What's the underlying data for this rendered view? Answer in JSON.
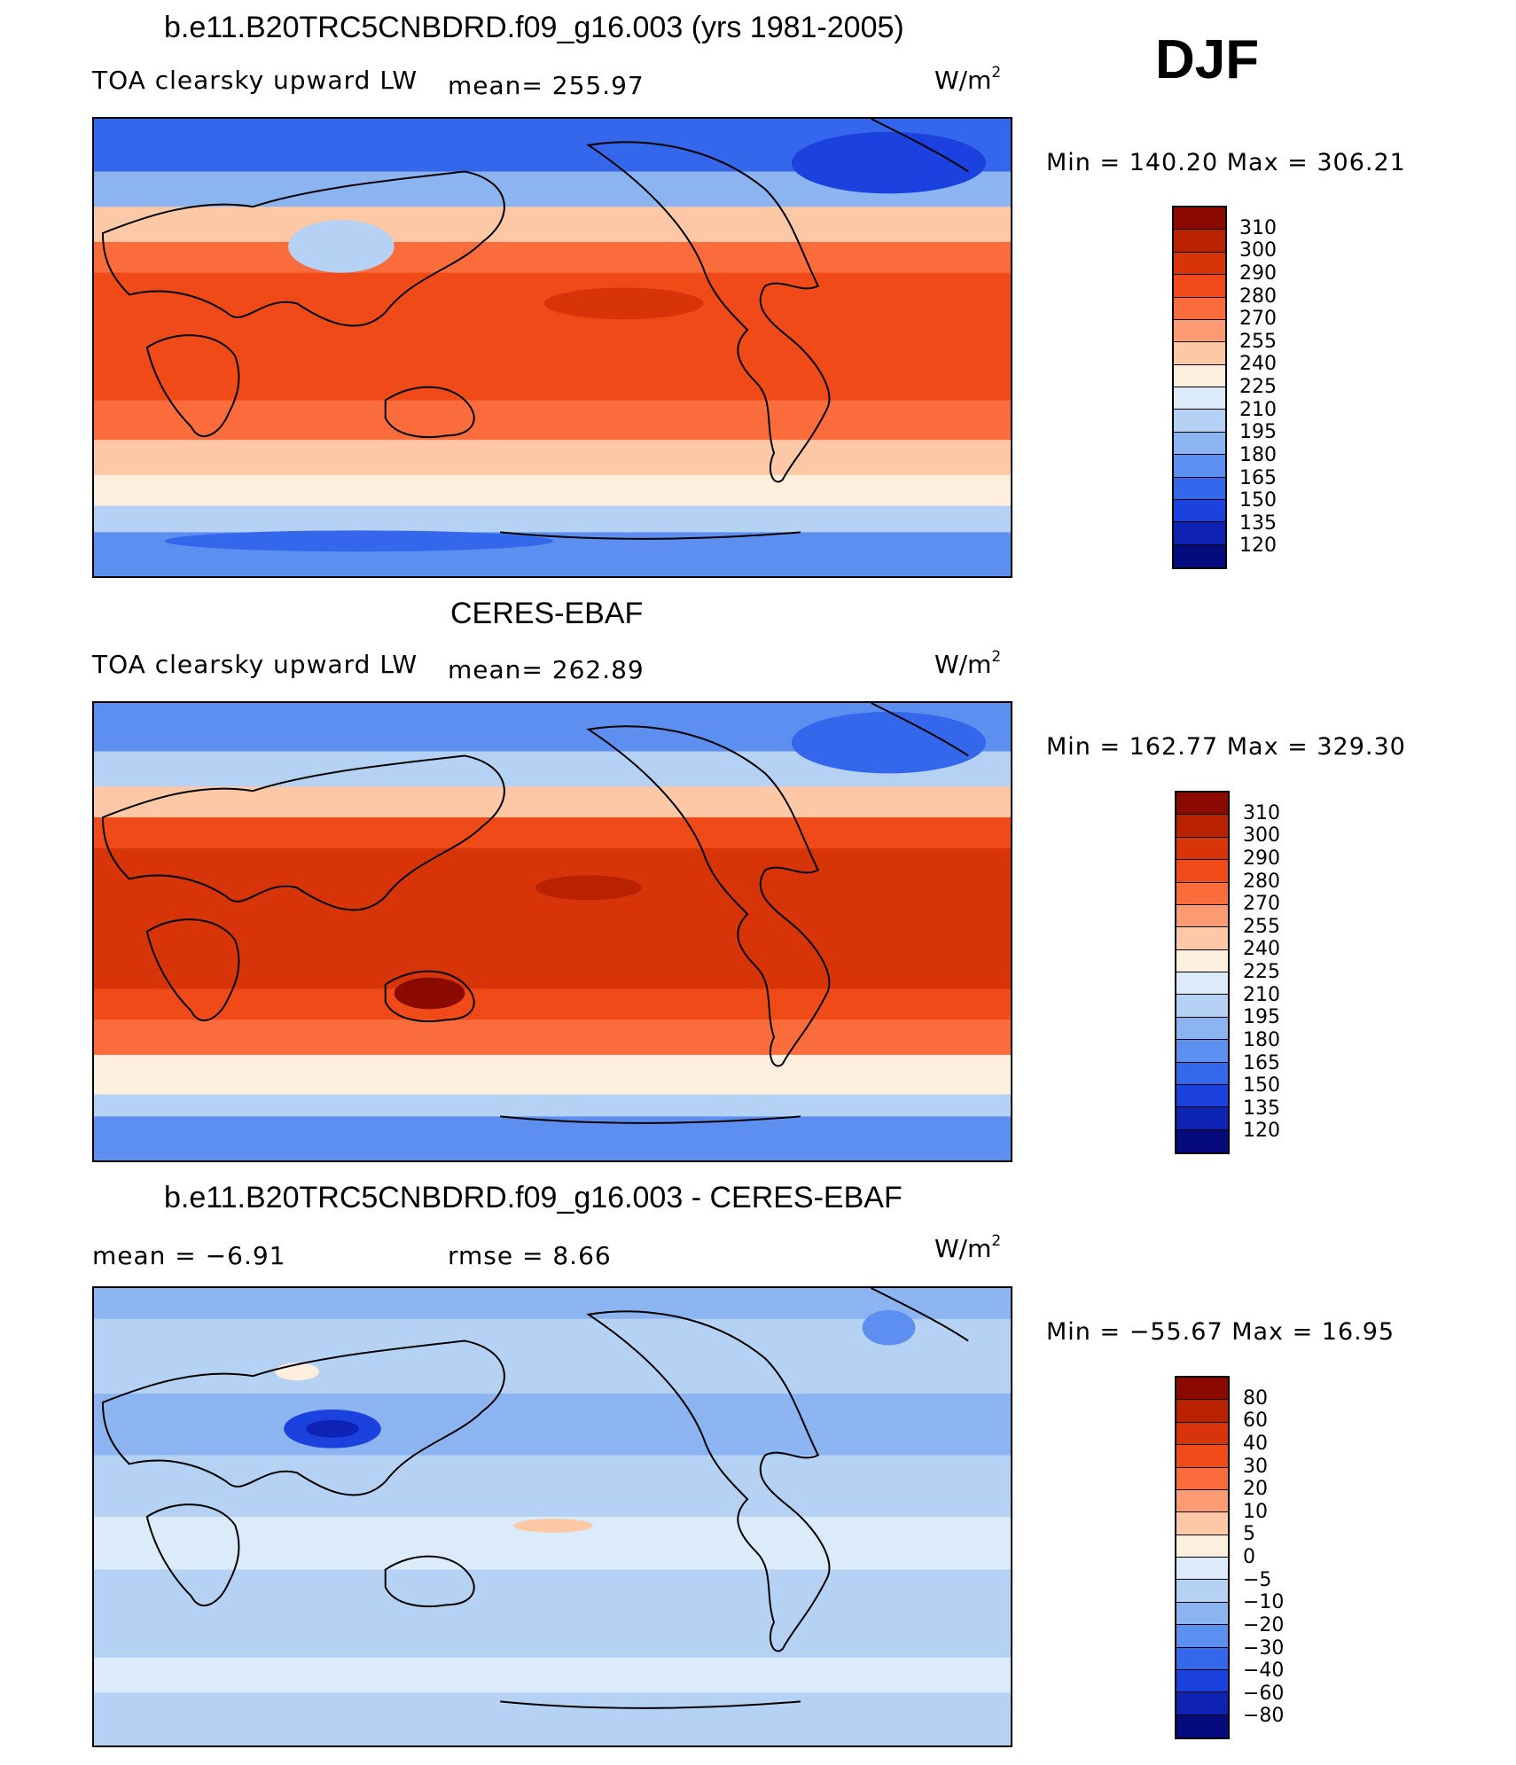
{
  "season": "DJF",
  "units_base": "W/m",
  "units_exp": "2",
  "panels": [
    {
      "title": "b.e11.B20TRC5CNBDRD.f09_g16.003 (yrs 1981-2005)",
      "left_label": "TOA clearsky upward LW",
      "center_label": "mean= 255.97",
      "minmax": "Min  =  140.20  Max  =  306.21"
    },
    {
      "title": "CERES-EBAF",
      "left_label": "TOA clearsky upward LW",
      "center_label": "mean= 262.89",
      "minmax": "Min  =  162.77  Max  =  329.30"
    },
    {
      "title": "b.e11.B20TRC5CNBDRD.f09_g16.003 - CERES-EBAF",
      "left_label": "mean  =    −6.91",
      "center_label": "rmse  =     8.66",
      "minmax": "Min  =  −55.67  Max  =    16.95"
    }
  ],
  "colorbars": {
    "absolute": {
      "levels": [
        "310",
        "300",
        "290",
        "280",
        "270",
        "255",
        "240",
        "225",
        "210",
        "195",
        "180",
        "165",
        "150",
        "135",
        "120"
      ],
      "colors": [
        "#8b0a00",
        "#b82200",
        "#d8340a",
        "#f04a18",
        "#fa6c3c",
        "#fc9a74",
        "#fdc8a6",
        "#feeede",
        "#dcebfa",
        "#b5d2f5",
        "#8cb4f0",
        "#5c8ff0",
        "#3467ec",
        "#1b42de",
        "#0e22b4",
        "#050a7c"
      ]
    },
    "difference": {
      "levels": [
        "80",
        "60",
        "40",
        "30",
        "20",
        "10",
        "5",
        "0",
        "−5",
        "−10",
        "−20",
        "−30",
        "−40",
        "−60",
        "−80"
      ],
      "colors": [
        "#8b0a00",
        "#b82200",
        "#d8340a",
        "#f04a18",
        "#fa6c3c",
        "#fc9a74",
        "#fdc8a6",
        "#feeede",
        "#dcebfa",
        "#b5d2f5",
        "#8cb4f0",
        "#5c8ff0",
        "#3467ec",
        "#1b42de",
        "#0e22b4",
        "#050a7c"
      ]
    }
  }
}
